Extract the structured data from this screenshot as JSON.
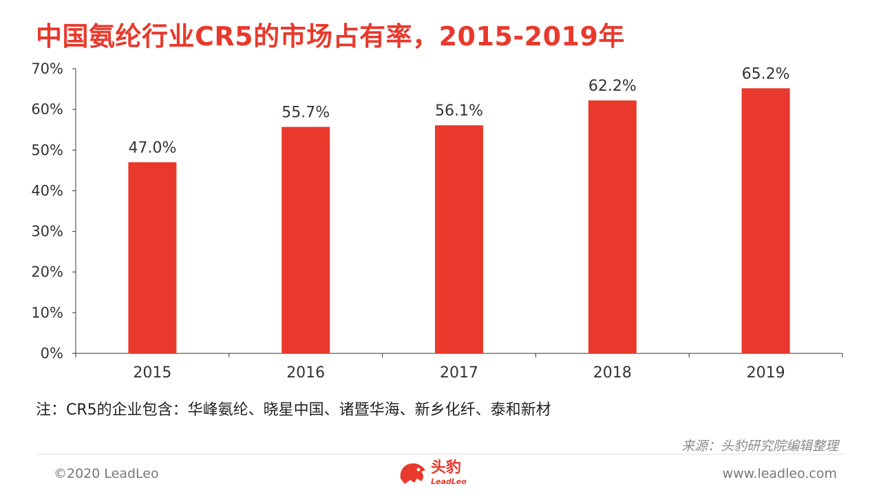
{
  "title": "中国氨纶行业CR5的市场占有率，2015-2019年",
  "chart_data": {
    "type": "bar",
    "title": "中国氨纶行业CR5的市场占有率，2015-2019年",
    "categories": [
      "2015",
      "2016",
      "2017",
      "2018",
      "2019"
    ],
    "values": [
      47.0,
      55.7,
      56.1,
      62.2,
      65.2
    ],
    "value_labels": [
      "47.0%",
      "55.7%",
      "56.1%",
      "62.2%",
      "65.2%"
    ],
    "ylim": [
      0,
      70
    ],
    "yticks": [
      0,
      10,
      20,
      30,
      40,
      50,
      60,
      70
    ],
    "ytick_labels": [
      "0%",
      "10%",
      "20%",
      "30%",
      "40%",
      "50%",
      "60%",
      "70%"
    ],
    "xlabel": "",
    "ylabel": "",
    "grid": false,
    "bar_color": "#e8392c"
  },
  "note": "注：CR5的企业包含：华峰氨纶、晓星中国、诸暨华海、新乡化纤、泰和新材",
  "source": "来源：头豹研究院编辑整理",
  "footer": {
    "copyright": "©2020 LeadLeo",
    "website": "www.leadleo.com",
    "logo_cn": "头豹",
    "logo_en": "LeadLeo"
  },
  "colors": {
    "accent": "#e8392c"
  }
}
